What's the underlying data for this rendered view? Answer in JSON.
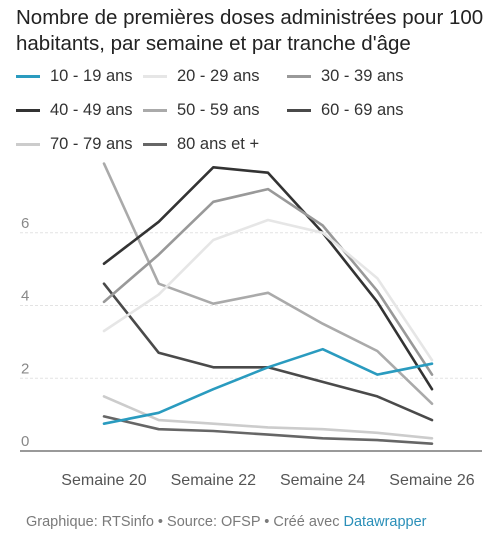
{
  "title": "Nombre de premières doses administrées pour 100 habitants, par semaine et par tranche d'âge",
  "legend": [
    {
      "label": "10 - 19 ans",
      "color": "#2a9bbf"
    },
    {
      "label": "20 - 29 ans",
      "color": "#e6e6e6"
    },
    {
      "label": "30 - 39 ans",
      "color": "#999999"
    },
    {
      "label": "40 - 49 ans",
      "color": "#333333"
    },
    {
      "label": "50 - 59 ans",
      "color": "#aaaaaa"
    },
    {
      "label": "60 - 69 ans",
      "color": "#4a4a4a"
    },
    {
      "label": "70 - 79 ans",
      "color": "#cccccc"
    },
    {
      "label": "80 ans et +",
      "color": "#666666"
    }
  ],
  "chart_data": {
    "type": "line",
    "title": "Nombre de premières doses administrées pour 100 habitants, par semaine et par tranche d'âge",
    "x": [
      20,
      21,
      22,
      23,
      24,
      25,
      26
    ],
    "xticks": [
      {
        "value": 20,
        "label": "Semaine 20"
      },
      {
        "value": 22,
        "label": "Semaine 22"
      },
      {
        "value": 24,
        "label": "Semaine 24"
      },
      {
        "value": 26,
        "label": "Semaine 26"
      }
    ],
    "yticks": [
      0,
      2,
      4,
      6
    ],
    "ylim": [
      0,
      8
    ],
    "grid": true,
    "legend_position": "top",
    "series": [
      {
        "name": "10 - 19 ans",
        "color": "#2a9bbf",
        "values": [
          0.75,
          1.05,
          1.7,
          2.3,
          2.8,
          2.1,
          2.4
        ]
      },
      {
        "name": "20 - 29 ans",
        "color": "#e6e6e6",
        "values": [
          3.3,
          4.3,
          5.8,
          6.35,
          6.0,
          4.75,
          2.5
        ]
      },
      {
        "name": "30 - 39 ans",
        "color": "#999999",
        "values": [
          4.1,
          5.4,
          6.85,
          7.2,
          6.2,
          4.4,
          2.1
        ]
      },
      {
        "name": "40 - 49 ans",
        "color": "#333333",
        "values": [
          5.15,
          6.3,
          7.8,
          7.65,
          6.0,
          4.1,
          1.7
        ]
      },
      {
        "name": "50 - 59 ans",
        "color": "#aaaaaa",
        "values": [
          7.9,
          4.6,
          4.05,
          4.35,
          3.5,
          2.75,
          1.3
        ]
      },
      {
        "name": "60 - 69 ans",
        "color": "#4a4a4a",
        "values": [
          4.6,
          2.7,
          2.3,
          2.3,
          1.9,
          1.5,
          0.85
        ]
      },
      {
        "name": "70 - 79 ans",
        "color": "#cccccc",
        "values": [
          1.5,
          0.85,
          0.75,
          0.65,
          0.6,
          0.5,
          0.35
        ]
      },
      {
        "name": "80 ans et +",
        "color": "#666666",
        "values": [
          0.95,
          0.6,
          0.55,
          0.45,
          0.35,
          0.3,
          0.2
        ]
      }
    ]
  },
  "footer": {
    "source_text": "Graphique: RTSinfo • Source: OFSP • Créé avec ",
    "link_text": "Datawrapper"
  }
}
